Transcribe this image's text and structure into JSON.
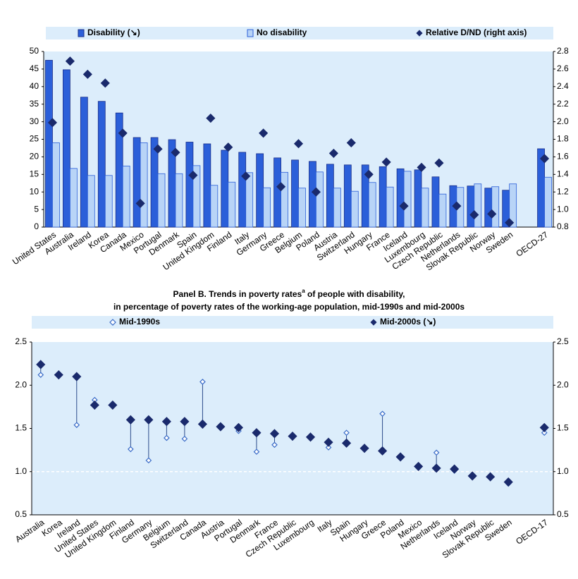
{
  "chart_data": [
    {
      "type": "bar",
      "categories": [
        "United States",
        "Australia",
        "Ireland",
        "Korea",
        "Canada",
        "Mexico",
        "Portugal",
        "Denmark",
        "Spain",
        "United Kingdom",
        "Finland",
        "Italy",
        "Germany",
        "Greece",
        "Belgium",
        "Poland",
        "Austria",
        "Switzerland",
        "Hungary",
        "France",
        "Iceland",
        "Luxembourg",
        "Czech Republic",
        "Netherlands",
        "Slovak Republic",
        "Norway",
        "Sweden",
        null,
        "OECD-27"
      ],
      "series": [
        {
          "name": "Disability (↘)",
          "color": "#2b5fd9",
          "edgecolor": "#1a2f8a",
          "marker": "bar",
          "values": [
            47.5,
            44.8,
            37,
            35.8,
            32.5,
            25.5,
            25.5,
            24.9,
            24.2,
            23.7,
            21.9,
            21.3,
            20.9,
            19.7,
            19.1,
            18.7,
            17.9,
            17.7,
            17.7,
            17.2,
            16.6,
            16.3,
            14.3,
            11.8,
            11.7,
            11.1,
            10.5,
            null,
            22.3
          ]
        },
        {
          "name": "No disability",
          "color": "#b8d4f7",
          "edgecolor": "#2b5fd9",
          "marker": "bar",
          "values": [
            24,
            16.7,
            14.7,
            14.7,
            17.4,
            24,
            15.2,
            15.2,
            17.5,
            11.9,
            12.8,
            15.5,
            11.2,
            15.6,
            11.1,
            15.7,
            11.1,
            10.2,
            12.7,
            11.4,
            15.9,
            11.1,
            9.4,
            11.3,
            12.3,
            11.5,
            12.3,
            null,
            14.2
          ]
        },
        {
          "name": "Relative D/ND (right axis)",
          "color": "#1a2a6c",
          "edgecolor": "#1a2a6c",
          "marker": "diamond",
          "axis": "y2",
          "values": [
            1.99,
            2.69,
            2.54,
            2.44,
            1.87,
            1.07,
            1.69,
            1.65,
            1.39,
            2.04,
            1.71,
            1.38,
            1.87,
            1.26,
            1.75,
            1.2,
            1.64,
            1.76,
            1.4,
            1.54,
            1.04,
            1.48,
            1.53,
            1.04,
            0.94,
            0.95,
            0.85,
            null,
            1.58
          ]
        }
      ],
      "ylim": [
        0,
        50
      ],
      "yticks": [
        0,
        5,
        10,
        15,
        20,
        25,
        30,
        35,
        40,
        45,
        50
      ],
      "y2lim": [
        0.8,
        2.8
      ],
      "y2ticks": [
        0.8,
        {
          "value": 1,
          "label": "1.0"
        },
        1.2,
        1.4,
        1.6,
        1.8,
        {
          "value": 2,
          "label": "2.0"
        },
        2.2,
        2.4,
        2.6,
        2.8
      ],
      "background": "#dcedfb"
    },
    {
      "type": "dot",
      "title": "Panel B. Trends in poverty rates",
      "title_note": "a",
      "title_rest": " of people with disability,",
      "subtitle": "in percentage of poverty rates of the working-age population, mid-1990s and mid-2000s",
      "categories": [
        "Australia",
        "Korea",
        "Ireland",
        "United States",
        "United Kingdom",
        "Finland",
        "Germany",
        "Belgium",
        "Switzerland",
        "Canada",
        "Austria",
        "Portugal",
        "Denmark",
        "France",
        "Czech Republic",
        "Luxembourg",
        "Italy",
        "Spain",
        "Hungary",
        "Greece",
        "Poland",
        "Mexico",
        "Netherlands",
        "Iceland",
        "Norway",
        "Slovak Republic",
        "Sweden",
        null,
        "OECD-17"
      ],
      "series": [
        {
          "name": "Mid-1990s",
          "color": "#3a6cc8",
          "marker": "hollow-diamond",
          "values": [
            2.12,
            null,
            1.54,
            1.83,
            null,
            1.26,
            1.13,
            1.39,
            1.38,
            2.04,
            null,
            1.47,
            1.23,
            1.31,
            null,
            null,
            1.28,
            1.45,
            null,
            1.67,
            null,
            null,
            1.22,
            1.01,
            null,
            null,
            0.86,
            null,
            1.45
          ]
        },
        {
          "name": "Mid-2000s (↘)",
          "color": "#1a2a6c",
          "marker": "diamond",
          "values": [
            2.24,
            2.12,
            2.1,
            1.77,
            1.77,
            1.6,
            1.6,
            1.58,
            1.58,
            1.55,
            1.52,
            1.51,
            1.45,
            1.44,
            1.41,
            1.4,
            1.34,
            1.33,
            1.27,
            1.24,
            1.17,
            1.06,
            1.04,
            1.03,
            0.95,
            0.94,
            0.88,
            null,
            1.51
          ]
        }
      ],
      "ylim": [
        0.5,
        2.5
      ],
      "yticks": [
        0.5,
        {
          "value": 1,
          "label": "1.0"
        },
        1.5,
        {
          "value": 2,
          "label": "2.0"
        },
        2.5
      ],
      "y2lim": [
        0.5,
        2.5
      ],
      "y2ticks": [
        0.5,
        {
          "value": 1,
          "label": "1.0"
        },
        1.5,
        {
          "value": 2,
          "label": "2.0"
        },
        2.5
      ],
      "reference_line": 1,
      "background": "#dcedfb"
    }
  ]
}
